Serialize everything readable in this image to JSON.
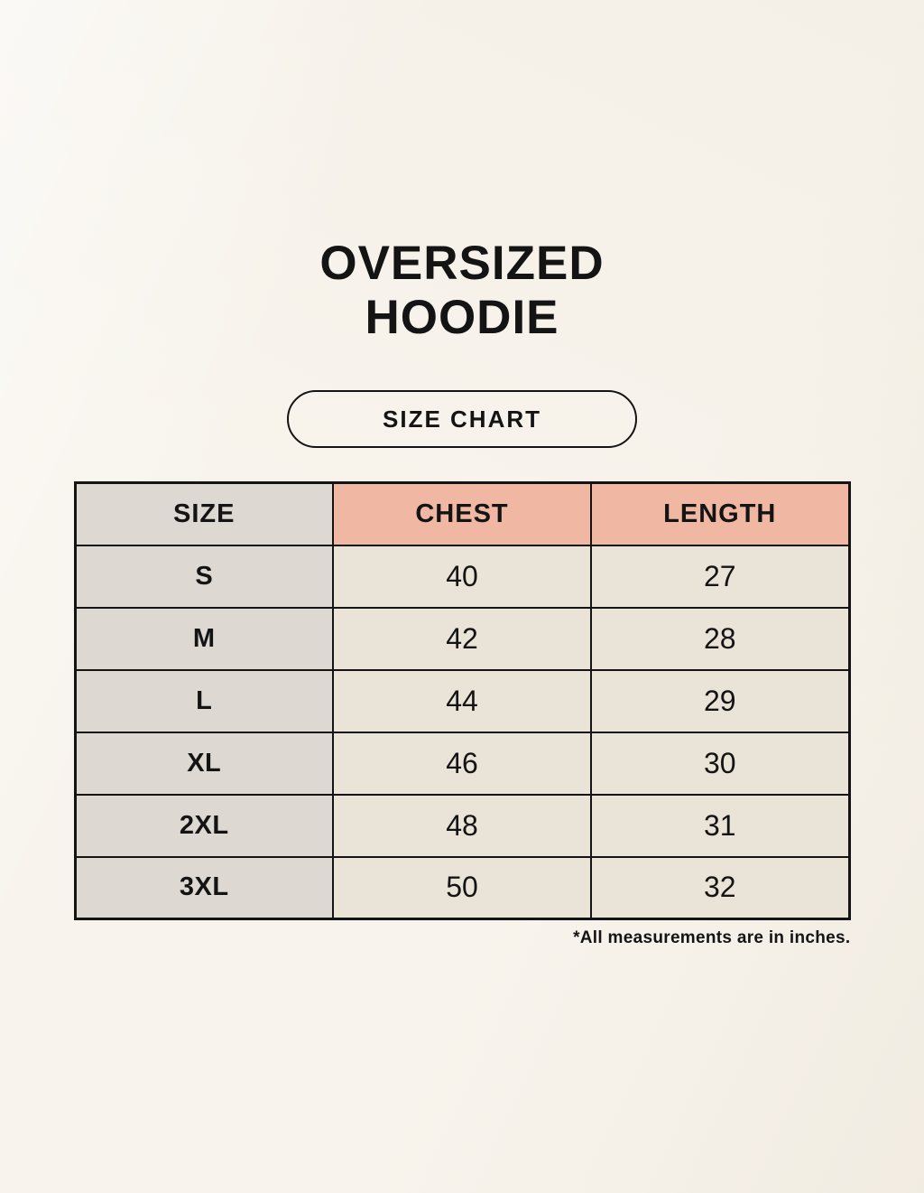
{
  "header": {
    "title_line1": "OVERSIZED",
    "title_line2": "HOODIE",
    "badge_label": "SIZE CHART"
  },
  "chart_data": {
    "type": "table",
    "title": "OVERSIZED HOODIE",
    "subtitle": "SIZE CHART",
    "columns": [
      "SIZE",
      "CHEST",
      "LENGTH"
    ],
    "rows": [
      [
        "S",
        40,
        27
      ],
      [
        "M",
        42,
        28
      ],
      [
        "L",
        44,
        29
      ],
      [
        "XL",
        46,
        30
      ],
      [
        "2XL",
        48,
        31
      ],
      [
        "3XL",
        50,
        32
      ]
    ],
    "units": "inches"
  },
  "footnote": "*All measurements are in inches.",
  "colors": {
    "page_background": "#F8F4ED",
    "size_column_fill": "#DED8D2",
    "measurement_header_fill": "#F0B7A3",
    "value_cell_fill": "#EAE4D8",
    "table_border": "#141414",
    "text": "#141414"
  }
}
